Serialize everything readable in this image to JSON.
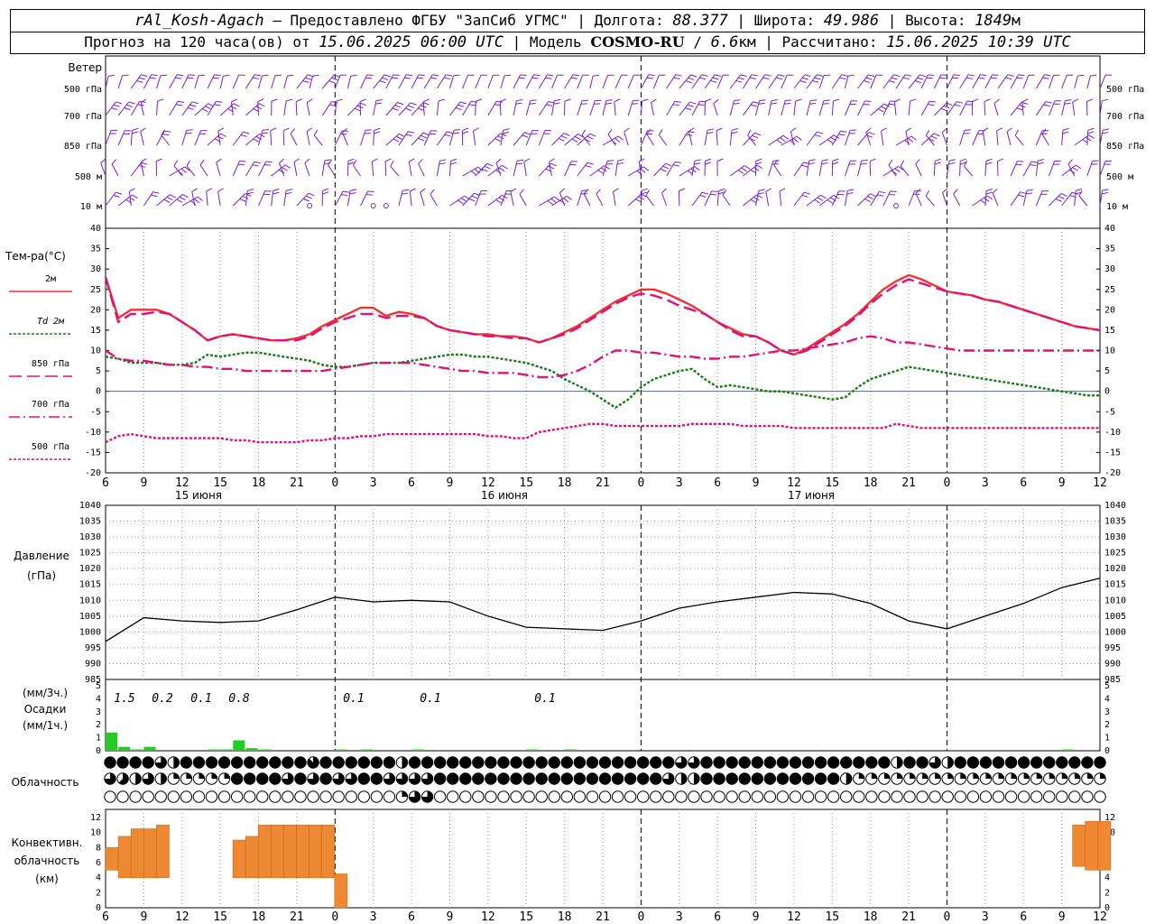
{
  "header": {
    "station": "rAl_Kosh-Agach",
    "provider": "Предоставлено ФГБУ \"ЗапСиб УГМС\"",
    "lon_label": "Долгота:",
    "lon": "88.377",
    "lat_label": "Широта:",
    "lat": "49.986",
    "alt_label": "Высота:",
    "alt": "1849",
    "alt_unit": "м",
    "forecast_label": "Прогноз на 120 часа(ов) от",
    "forecast_time": "15.06.2025 06:00 UTC",
    "model_label": "Модель",
    "model": "COSMO-RU",
    "resolution": "6.6",
    "res_unit": "км",
    "calc_label": "Рассчитано:",
    "calc_time": "15.06.2025 10:39 UTC"
  },
  "time_axis": {
    "hour_labels": [
      "6",
      "9",
      "12",
      "15",
      "18",
      "21",
      "0",
      "3",
      "6",
      "9",
      "12",
      "15",
      "18",
      "21",
      "0",
      "3",
      "6",
      "9",
      "12",
      "15",
      "18",
      "21",
      "0",
      "3",
      "6",
      "9",
      "12"
    ],
    "day_labels": [
      "15 июня",
      "16 июня",
      "17 июня"
    ]
  },
  "wind_panel": {
    "title": "Ветер",
    "levels": [
      "500 гПа",
      "700 гПа",
      "850 гПа",
      "500 м",
      "10 м"
    ],
    "color": "#7a1fd6"
  },
  "chart_data": [
    {
      "type": "line",
      "name": "temperature",
      "title": "Тем-ра(°C)",
      "ylim": [
        -20,
        40
      ],
      "yticks": [
        -20,
        -15,
        -10,
        -5,
        0,
        5,
        10,
        15,
        20,
        25,
        30,
        35,
        40
      ],
      "x_hours": [
        0,
        1,
        2,
        3,
        4,
        5,
        6,
        7,
        8,
        9,
        10,
        11,
        12,
        13,
        14,
        15,
        16,
        17,
        18,
        19,
        20,
        21,
        22,
        23,
        24,
        25,
        26,
        27,
        28,
        29,
        30,
        31,
        32,
        33,
        34,
        35,
        36,
        37,
        38,
        39,
        40,
        41,
        42,
        43,
        44,
        45,
        46,
        47,
        48,
        49,
        50,
        51,
        52,
        53,
        54,
        55,
        56,
        57,
        58,
        59,
        60,
        61,
        62,
        63,
        64,
        65,
        66,
        67,
        68,
        69,
        70,
        71,
        72,
        73,
        74,
        75,
        76,
        77,
        78
      ],
      "series": [
        {
          "name": "2м",
          "color": "#ee3333",
          "dash": "",
          "values": [
            28,
            18,
            20,
            20,
            20,
            19,
            17,
            15,
            12.5,
            13.5,
            14,
            13.5,
            13,
            12.5,
            12.5,
            13,
            14,
            16,
            17.5,
            19,
            20.5,
            20.5,
            18.5,
            19.5,
            19,
            18,
            16,
            15,
            14.5,
            14,
            14,
            13.5,
            13.5,
            13,
            12,
            13,
            14.5,
            16,
            18,
            20,
            22,
            23.5,
            25,
            25,
            24,
            22.5,
            21,
            19,
            17,
            15.5,
            14,
            13.5,
            12,
            10,
            9,
            10.5,
            12.5,
            14.5,
            16.5,
            19,
            22,
            25,
            27,
            28.5,
            27.5,
            26,
            24.5,
            24,
            23.5,
            22.5,
            22,
            21,
            20,
            19,
            18,
            17,
            16,
            15.5,
            15
          ]
        },
        {
          "name": "Td 2м",
          "color": "#1a7a1a",
          "dash": "3,2",
          "values": [
            8.5,
            8,
            7,
            7,
            7,
            6.5,
            6.5,
            7,
            9,
            8.5,
            9,
            9.5,
            9.5,
            9,
            8.5,
            8,
            7.5,
            6.5,
            6,
            6,
            6.5,
            7,
            7,
            7,
            7.5,
            8,
            8.5,
            9,
            9,
            8.5,
            8.5,
            8,
            7.5,
            7,
            6,
            5,
            3,
            1.5,
            0,
            -2,
            -4,
            -2,
            1,
            3,
            4,
            5,
            5.5,
            3,
            1,
            1.5,
            1,
            0.5,
            0,
            0,
            -0.5,
            -1,
            -1.5,
            -2,
            -1.5,
            1,
            3,
            4,
            5,
            6,
            5.5,
            5,
            4.5,
            4,
            3.5,
            3,
            2.5,
            2,
            1.5,
            1,
            0.5,
            0,
            -0.5,
            -1,
            -1
          ]
        },
        {
          "name": "850 гПа",
          "color": "#dd1177",
          "dash": "14,6",
          "values": [
            28,
            17,
            19,
            19,
            19.5,
            19,
            17,
            15,
            12.5,
            13.5,
            14,
            13.5,
            13,
            12.5,
            12.5,
            12.5,
            13.5,
            15.5,
            17,
            18,
            19,
            19,
            18,
            18.5,
            18.5,
            18,
            16,
            15,
            14.5,
            14,
            13.5,
            13.5,
            13,
            13,
            12,
            13,
            14,
            15.5,
            17.5,
            19.5,
            21.5,
            23,
            24,
            23.5,
            22.5,
            21,
            20,
            19,
            17,
            15,
            13.5,
            13.5,
            12,
            10,
            9,
            10,
            12,
            14,
            16,
            18.5,
            21.5,
            24,
            26,
            27.5,
            26.5,
            25.5,
            24.5,
            24,
            23.5,
            22.5,
            22,
            21,
            20,
            19,
            18,
            17,
            16,
            15.5,
            15
          ]
        },
        {
          "name": "700 гПа",
          "color": "#dd1177",
          "dash": "12,4,2,4",
          "values": [
            10,
            8,
            7.5,
            7.5,
            7,
            6.5,
            6.5,
            6,
            6,
            5.5,
            5.5,
            5,
            5,
            5,
            5,
            5,
            5,
            5,
            5.5,
            6,
            6.5,
            7,
            7,
            7,
            7,
            6.5,
            6,
            5.5,
            5,
            5,
            4.5,
            4.5,
            4.5,
            4,
            3.5,
            3.5,
            4,
            5,
            6.5,
            8.5,
            10,
            10,
            9.5,
            9.5,
            9,
            8.5,
            8.5,
            8,
            8,
            8.5,
            8.5,
            9,
            9.5,
            10,
            10,
            10.5,
            11,
            11.5,
            12,
            13,
            13.5,
            13,
            12,
            12,
            11.5,
            11,
            10.5,
            10,
            10,
            10,
            10,
            10,
            10,
            10,
            10,
            10,
            10,
            10,
            10
          ]
        },
        {
          "name": "500 гПа",
          "color": "#dd1177",
          "dash": "3,2",
          "values": [
            -12.5,
            -11,
            -10.5,
            -11,
            -11.5,
            -11.5,
            -11.5,
            -11.5,
            -11.5,
            -11.5,
            -12,
            -12,
            -12.5,
            -12.5,
            -12.5,
            -12.5,
            -12,
            -12,
            -11.5,
            -11.5,
            -11,
            -11,
            -10.5,
            -10.5,
            -10.5,
            -10.5,
            -10.5,
            -10.5,
            -10.5,
            -10.5,
            -11,
            -11,
            -11.5,
            -11.5,
            -10,
            -9.5,
            -9,
            -8.5,
            -8,
            -8,
            -8.5,
            -8.5,
            -8.5,
            -8.5,
            -8.5,
            -8.5,
            -8,
            -8,
            -8,
            -8,
            -8.5,
            -8.5,
            -8.5,
            -8.5,
            -9,
            -9,
            -9,
            -9,
            -9,
            -9,
            -9,
            -9,
            -8,
            -8.5,
            -9,
            -9,
            -9,
            -9,
            -9,
            -9,
            -9,
            -9,
            -9,
            -9,
            -9,
            -9,
            -9,
            -9,
            -9
          ]
        }
      ]
    },
    {
      "type": "line",
      "name": "pressure",
      "title": "Давление",
      "unit": "(гПа)",
      "ylim": [
        985,
        1040
      ],
      "yticks": [
        985,
        990,
        995,
        1000,
        1005,
        1010,
        1015,
        1020,
        1025,
        1030,
        1035,
        1040
      ],
      "x_hours": [
        0,
        3,
        6,
        9,
        12,
        15,
        18,
        21,
        24,
        27,
        30,
        33,
        36,
        39,
        42,
        45,
        48,
        51,
        54,
        57,
        60,
        63,
        66,
        69,
        72,
        75,
        78
      ],
      "values": [
        997,
        1004.5,
        1003.5,
        1003,
        1003.5,
        1007,
        1011,
        1009.5,
        1010,
        1009.5,
        1005,
        1001.5,
        1001,
        1000.5,
        1003.5,
        1007.5,
        1009.5,
        1011,
        1012.5,
        1012,
        1009,
        1003.5,
        1001,
        1005,
        1009,
        1014,
        1017
      ]
    },
    {
      "type": "bar",
      "name": "precipitation",
      "title": "Осадки",
      "unit_top": "(мм/3ч.)",
      "unit_bottom": "(мм/1ч.)",
      "ylim": [
        0,
        5
      ],
      "yticks": [
        0,
        1,
        2,
        3,
        4,
        5
      ],
      "color": "#22cc22",
      "totals_3h": [
        "1.5",
        "0.2",
        "0.1",
        "0.8",
        "0.1",
        "0.1",
        "0.1"
      ],
      "x_hours": [
        0,
        1,
        2,
        3,
        4,
        5,
        6,
        7,
        8,
        9,
        10,
        11,
        12,
        13,
        14,
        15,
        16,
        17,
        18,
        19,
        20,
        21,
        22,
        23,
        24,
        25,
        26,
        27,
        28,
        29,
        30,
        31,
        32,
        33,
        34,
        35,
        36,
        37,
        38,
        39,
        40,
        41,
        42,
        43,
        44,
        45,
        46,
        47,
        48,
        49,
        50,
        51,
        52,
        53,
        54,
        55,
        56,
        57,
        58,
        59,
        60,
        61,
        62,
        63,
        64,
        65,
        66,
        67,
        68,
        69,
        70,
        71,
        72,
        73,
        74,
        75,
        76,
        77,
        78
      ],
      "values": [
        1.4,
        0.3,
        0.1,
        0.3,
        0,
        0,
        0,
        0,
        0.1,
        0.1,
        0.8,
        0.2,
        0.1,
        0,
        0,
        0,
        0,
        0,
        0.1,
        0,
        0.1,
        0,
        0,
        0,
        0.1,
        0,
        0,
        0,
        0,
        0,
        0,
        0,
        0,
        0.1,
        0,
        0,
        0.1,
        0,
        0,
        0,
        0,
        0,
        0,
        0,
        0,
        0,
        0,
        0,
        0,
        0,
        0,
        0,
        0,
        0,
        0,
        0,
        0,
        0,
        0,
        0,
        0,
        0,
        0,
        0,
        0,
        0,
        0,
        0,
        0,
        0,
        0,
        0,
        0,
        0,
        0,
        0.1,
        0,
        0,
        0
      ]
    },
    {
      "type": "table",
      "name": "cloudiness",
      "title": "Облачность",
      "note": "cloud cover per hour in eighths (0-8) for 3 layers",
      "top": [
        8,
        8,
        8,
        8,
        6,
        4,
        8,
        8,
        8,
        8,
        8,
        8,
        8,
        8,
        8,
        8,
        7,
        8,
        8,
        8,
        8,
        8,
        8,
        4,
        8,
        8,
        8,
        8,
        8,
        8,
        8,
        8,
        8,
        8,
        8,
        8,
        8,
        8,
        8,
        8,
        8,
        8,
        8,
        8,
        8,
        6,
        6,
        8,
        8,
        8,
        8,
        8,
        8,
        8,
        8,
        8,
        8,
        8,
        8,
        8,
        8,
        8,
        4,
        8,
        8,
        6,
        4,
        8,
        8,
        8,
        8,
        8,
        8,
        8,
        8,
        8,
        8,
        8,
        8
      ],
      "middle": [
        6,
        5,
        4,
        6,
        4,
        2,
        2,
        2,
        2,
        2,
        8,
        8,
        8,
        8,
        6,
        8,
        6,
        8,
        6,
        6,
        8,
        8,
        6,
        6,
        6,
        6,
        8,
        8,
        8,
        8,
        8,
        8,
        8,
        8,
        8,
        8,
        8,
        8,
        8,
        8,
        8,
        8,
        8,
        8,
        6,
        4,
        4,
        8,
        8,
        8,
        8,
        8,
        8,
        8,
        8,
        8,
        8,
        8,
        4,
        2,
        2,
        2,
        2,
        2,
        2,
        2,
        2,
        2,
        2,
        2,
        2,
        2,
        2,
        2,
        2,
        2,
        2,
        2,
        2
      ],
      "bottom": [
        0,
        0,
        0,
        0,
        0,
        0,
        0,
        0,
        0,
        0,
        0,
        0,
        0,
        0,
        0,
        0,
        0,
        0,
        0,
        0,
        0,
        0,
        0,
        2,
        6,
        6,
        0,
        0,
        0,
        0,
        0,
        0,
        0,
        0,
        0,
        0,
        0,
        0,
        0,
        0,
        0,
        0,
        0,
        0,
        0,
        0,
        0,
        0,
        0,
        0,
        0,
        0,
        0,
        0,
        0,
        0,
        0,
        0,
        0,
        0,
        0,
        0,
        0,
        0,
        0,
        0,
        0,
        0,
        0,
        0,
        0,
        0,
        0,
        0,
        0,
        0,
        0,
        0,
        0
      ]
    },
    {
      "type": "bar",
      "name": "convective_clouds",
      "title": "Конвективн. облачность",
      "unit": "(км)",
      "ylim": [
        0,
        12
      ],
      "yticks": [
        0,
        2,
        4,
        6,
        8,
        10,
        12
      ],
      "color": "#ee8833",
      "bases": [
        5,
        4,
        4,
        4,
        4,
        0,
        0,
        0,
        0,
        0,
        4,
        4,
        4,
        4,
        4,
        4,
        4,
        4,
        0,
        0,
        0,
        0,
        0,
        0,
        0,
        0,
        0,
        0,
        0,
        0,
        0,
        0,
        0,
        0,
        0,
        0,
        0,
        0,
        0,
        0,
        0,
        0,
        0,
        0,
        0,
        0,
        0,
        0,
        0,
        0,
        0,
        0,
        0,
        0,
        0,
        0,
        0,
        0,
        0,
        0,
        0,
        0,
        0,
        0,
        0,
        0,
        0,
        0,
        0,
        0,
        0,
        0,
        0,
        0,
        0,
        0,
        5.5,
        5,
        5
      ],
      "tops": [
        8,
        9.5,
        10.5,
        10.5,
        11,
        0,
        0,
        0,
        0,
        0,
        9,
        9.5,
        11,
        11,
        11,
        11,
        11,
        11,
        4.5,
        0,
        0,
        0,
        0,
        0,
        0,
        0,
        0,
        0,
        0,
        0,
        0,
        0,
        0,
        0,
        0,
        0,
        0,
        0,
        0,
        0,
        0,
        0,
        0,
        0,
        0,
        0,
        0,
        0,
        0,
        0,
        0,
        0,
        0,
        0,
        0,
        0,
        0,
        0,
        0,
        0,
        0,
        0,
        0,
        0,
        0,
        0,
        0,
        0,
        0,
        0,
        0,
        0,
        0,
        0,
        0,
        0,
        11,
        11.5,
        11.5
      ]
    }
  ]
}
